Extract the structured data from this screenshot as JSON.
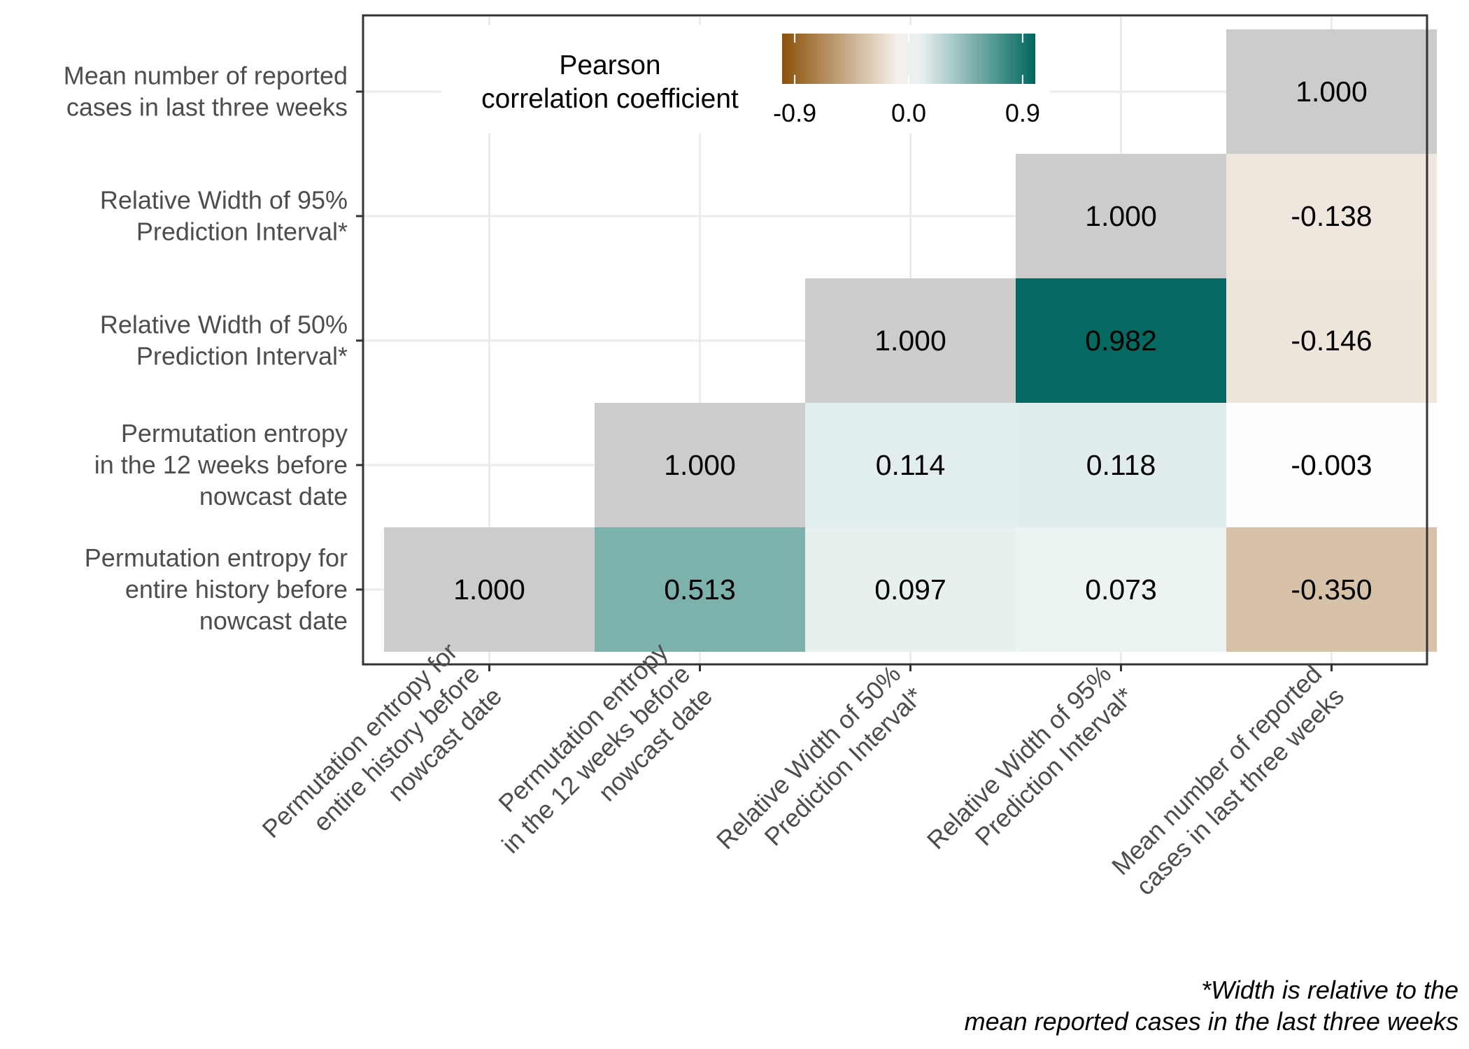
{
  "chart_data": {
    "type": "heatmap",
    "variables": [
      "Permutation entropy for entire history before nowcast date",
      "Permutation entropy in the 12 weeks before nowcast date",
      "Relative Width of 50% Prediction Interval*",
      "Relative Width of 95% Prediction Interval*",
      "Mean number of reported cases in last three weeks"
    ],
    "x_labels": [
      [
        "Permutation entropy for",
        "entire history before",
        "nowcast date"
      ],
      [
        "Permutation entropy",
        "in the 12 weeks before",
        "nowcast date"
      ],
      [
        "Relative Width of 50%",
        "Prediction Interval*"
      ],
      [
        "Relative Width of 95%",
        "Prediction Interval*"
      ],
      [
        "Mean number of reported",
        "cases in last three weeks"
      ]
    ],
    "y_labels": [
      [
        "Permutation entropy for",
        "entire history before",
        "nowcast date"
      ],
      [
        "Permutation entropy",
        "in the 12 weeks before",
        "nowcast date"
      ],
      [
        "Relative Width of 50%",
        "Prediction Interval*"
      ],
      [
        "Relative Width of 95%",
        "Prediction Interval*"
      ],
      [
        "Mean number of reported",
        "cases in last three weeks"
      ]
    ],
    "cells": [
      {
        "x": 0,
        "y": 0,
        "value": 1.0,
        "label": "1.000",
        "diagonal": true
      },
      {
        "x": 1,
        "y": 0,
        "value": 0.513,
        "label": "0.513"
      },
      {
        "x": 2,
        "y": 0,
        "value": 0.097,
        "label": "0.097"
      },
      {
        "x": 3,
        "y": 0,
        "value": 0.073,
        "label": "0.073"
      },
      {
        "x": 4,
        "y": 0,
        "value": -0.35,
        "label": "-0.350"
      },
      {
        "x": 1,
        "y": 1,
        "value": 1.0,
        "label": "1.000",
        "diagonal": true
      },
      {
        "x": 2,
        "y": 1,
        "value": 0.114,
        "label": "0.114"
      },
      {
        "x": 3,
        "y": 1,
        "value": 0.118,
        "label": "0.118"
      },
      {
        "x": 4,
        "y": 1,
        "value": -0.003,
        "label": "-0.003"
      },
      {
        "x": 2,
        "y": 2,
        "value": 1.0,
        "label": "1.000",
        "diagonal": true
      },
      {
        "x": 3,
        "y": 2,
        "value": 0.982,
        "label": "0.982"
      },
      {
        "x": 4,
        "y": 2,
        "value": -0.146,
        "label": "-0.146"
      },
      {
        "x": 3,
        "y": 3,
        "value": 1.0,
        "label": "1.000",
        "diagonal": true
      },
      {
        "x": 4,
        "y": 3,
        "value": -0.138,
        "label": "-0.138"
      },
      {
        "x": 4,
        "y": 4,
        "value": 1.0,
        "label": "1.000",
        "diagonal": true
      }
    ],
    "legend": {
      "title": [
        "Pearson",
        "correlation coefficient"
      ],
      "range": [
        -1.0,
        1.0
      ],
      "ticks": [
        -0.9,
        0.0,
        0.9
      ],
      "tick_labels": [
        "-0.9",
        "0.0",
        "0.9"
      ],
      "placement": "top-left, inside plot"
    },
    "colors": {
      "negative": "#8c510a",
      "midpoint": "#ffffff",
      "positive": "#01665e",
      "diagonal": "#cccccc",
      "grid": "#ebebeb",
      "panel_border": "#333333",
      "axis_text": "#4d4d4d"
    },
    "grid": true,
    "caption": [
      "*Width is relative to the",
      "mean reported cases in the last three weeks"
    ]
  }
}
